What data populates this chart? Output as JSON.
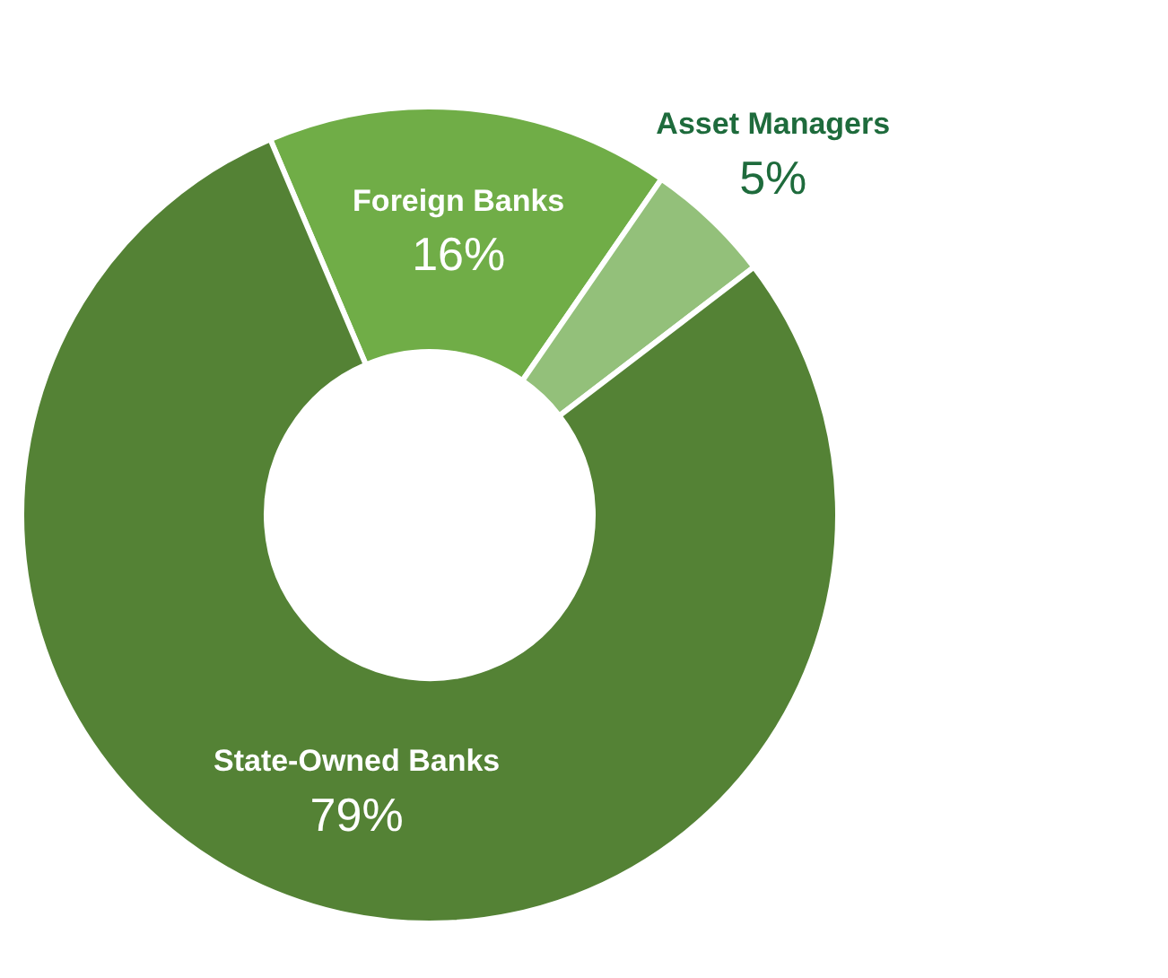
{
  "chart_data": {
    "type": "donut",
    "categories": [
      "Foreign Banks",
      "Asset Managers",
      "State-Owned Banks"
    ],
    "values": [
      16,
      5,
      79
    ],
    "value_labels": [
      "16%",
      "5%",
      "79%"
    ],
    "colors": [
      "#70ad47",
      "#93c07a",
      "#548235"
    ],
    "legend": false
  }
}
